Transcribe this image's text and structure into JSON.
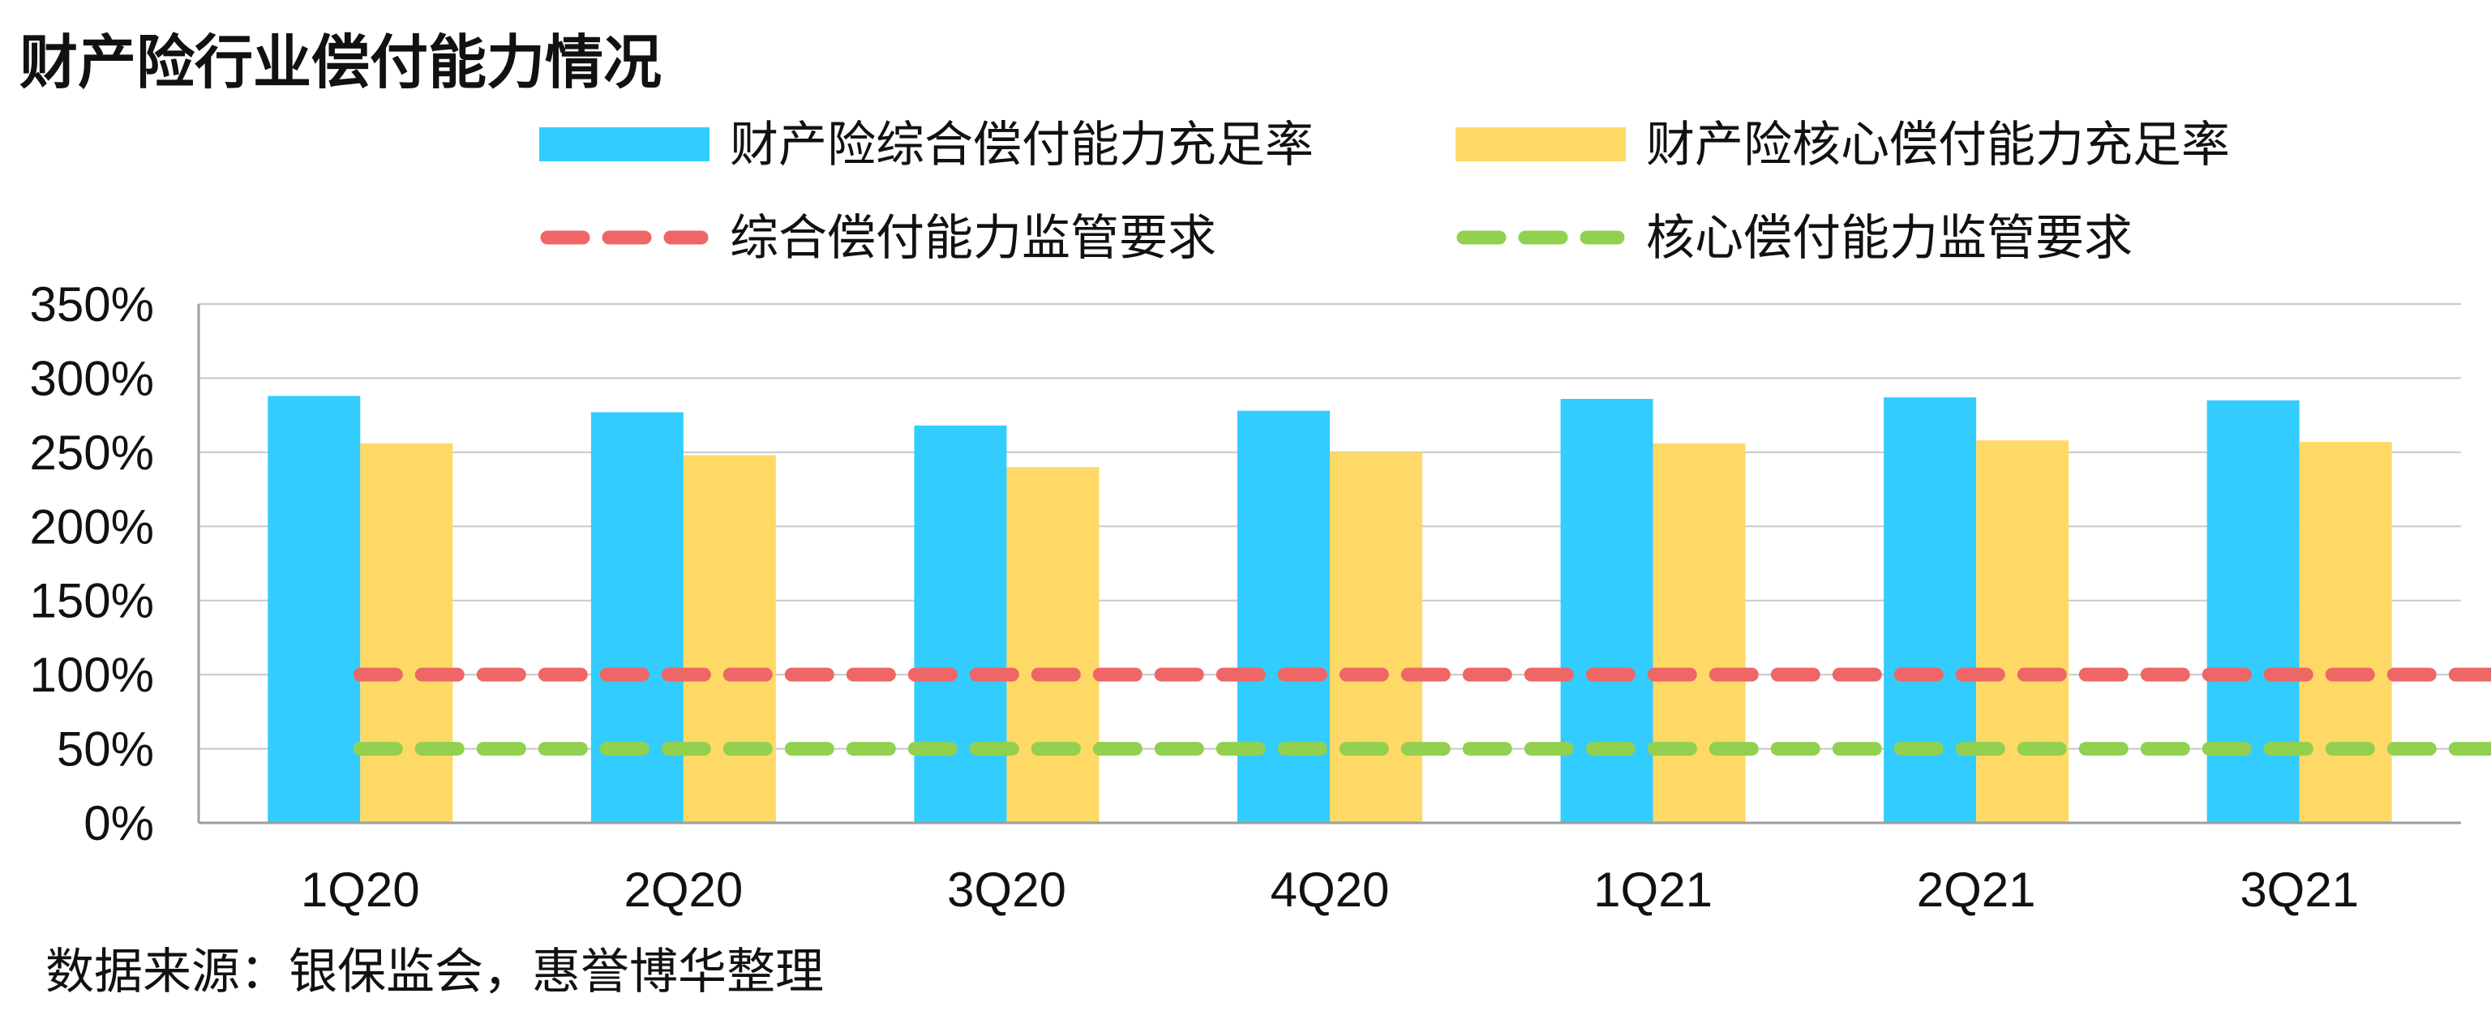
{
  "page": {
    "title": "财产险行业偿付能力情况",
    "source": "数据来源：银保监会，惠誉博华整理"
  },
  "chart_data": {
    "type": "bar",
    "title": "财产险行业偿付能力情况",
    "categories": [
      "1Q20",
      "2Q20",
      "3Q20",
      "4Q20",
      "1Q21",
      "2Q21",
      "3Q21"
    ],
    "series": [
      {
        "name": "财产险综合偿付能力充足率",
        "kind": "bar",
        "color": "#33CCFF",
        "values": [
          288,
          277,
          268,
          278,
          286,
          287,
          285
        ]
      },
      {
        "name": "财产险核心偿付能力充足率",
        "kind": "bar",
        "color": "#FFD966",
        "values": [
          256,
          248,
          240,
          250,
          256,
          258,
          257
        ]
      },
      {
        "name": "综合偿付能力监管要求",
        "kind": "dashed-line",
        "color": "#EE6666",
        "values": [
          100,
          100,
          100,
          100,
          100,
          100,
          100
        ]
      },
      {
        "name": "核心偿付能力监管要求",
        "kind": "dashed-line",
        "color": "#92D050",
        "values": [
          50,
          50,
          50,
          50,
          50,
          50,
          50
        ]
      }
    ],
    "yticks": [
      "0%",
      "50%",
      "100%",
      "150%",
      "200%",
      "250%",
      "300%",
      "350%"
    ],
    "ylim": [
      0,
      350
    ],
    "y_unit": "%",
    "grid": true,
    "legend_position": "top"
  }
}
